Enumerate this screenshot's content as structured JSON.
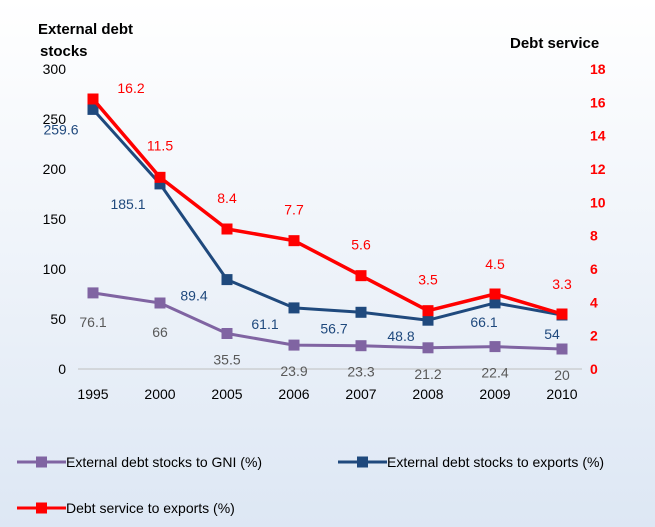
{
  "chart_data": {
    "type": "line",
    "title": "",
    "left_axis_title": [
      "External debt",
      "stocks"
    ],
    "right_axis_title": "Debt service",
    "categories": [
      "1995",
      "2000",
      "2005",
      "2006",
      "2007",
      "2008",
      "2009",
      "2010"
    ],
    "left_ylim": [
      0,
      300
    ],
    "left_ticks": [
      0,
      50,
      100,
      150,
      200,
      250,
      300
    ],
    "right_ylim": [
      0,
      18
    ],
    "right_ticks": [
      0,
      2,
      4,
      6,
      8,
      10,
      12,
      14,
      16,
      18
    ],
    "grid": false,
    "legend_position": "bottom",
    "series": [
      {
        "name": "External debt stocks to GNI (%)",
        "axis": "left",
        "color": "#8064a2",
        "label_color": "#595959",
        "values": [
          76.1,
          66,
          35.5,
          23.9,
          23.3,
          21.2,
          22.4,
          20
        ],
        "labels": [
          "76.1",
          "66",
          "35.5",
          "23.9",
          "23.3",
          "21.2",
          "22.4",
          "20"
        ]
      },
      {
        "name": "External debt stocks to exports  (%)",
        "axis": "left",
        "color": "#1f497d",
        "label_color": "#1f497d",
        "values": [
          259.6,
          185.1,
          89.4,
          61.1,
          56.7,
          48.8,
          66.1,
          54
        ],
        "labels": [
          "259.6",
          "185.1",
          "89.4",
          "61.1",
          "56.7",
          "48.8",
          "66.1",
          "54"
        ]
      },
      {
        "name": "Debt service to exports  (%)",
        "axis": "right",
        "color": "#ff0000",
        "label_color": "#ff0000",
        "values": [
          16.2,
          11.5,
          8.4,
          7.7,
          5.6,
          3.5,
          4.5,
          3.3
        ],
        "labels": [
          "16.2",
          "11.5",
          "8.4",
          "7.7",
          "5.6",
          "3.5",
          "4.5",
          "3.3"
        ]
      }
    ]
  }
}
